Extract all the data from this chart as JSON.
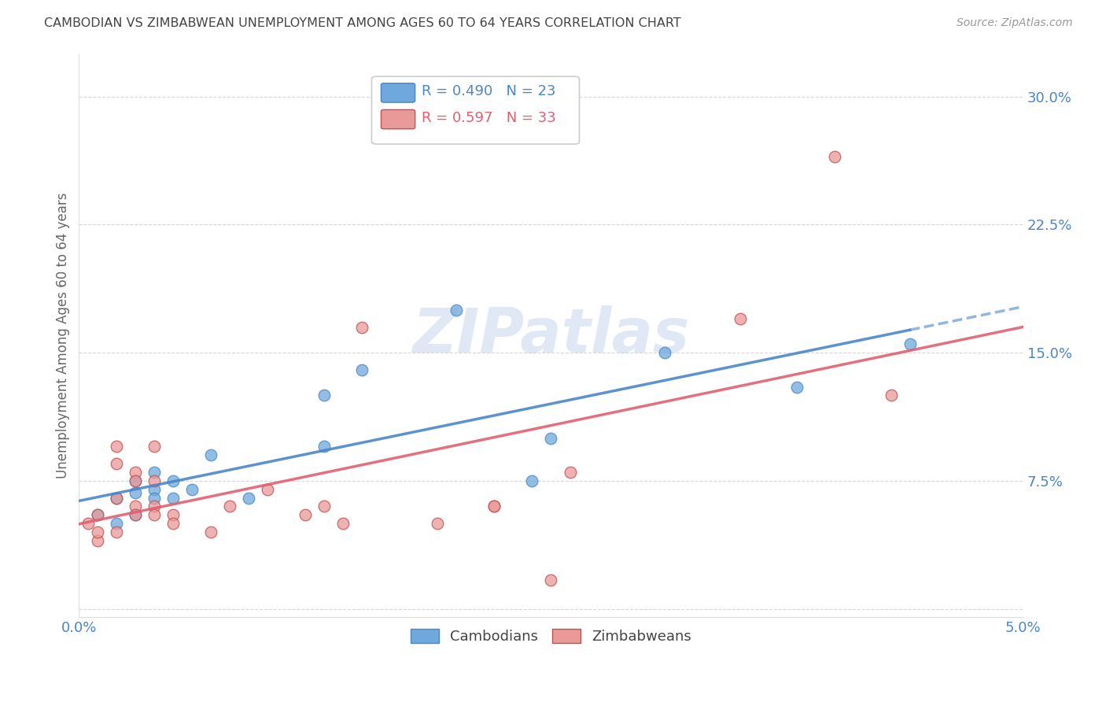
{
  "title": "CAMBODIAN VS ZIMBABWEAN UNEMPLOYMENT AMONG AGES 60 TO 64 YEARS CORRELATION CHART",
  "source": "Source: ZipAtlas.com",
  "ylabel": "Unemployment Among Ages 60 to 64 years",
  "xlabel_cambodians": "Cambodians",
  "xlabel_zimbabweans": "Zimbabweans",
  "xlim": [
    0.0,
    0.05
  ],
  "ylim": [
    -0.005,
    0.325
  ],
  "yticks": [
    0.0,
    0.075,
    0.15,
    0.225,
    0.3
  ],
  "ytick_labels": [
    "",
    "7.5%",
    "15.0%",
    "22.5%",
    "30.0%"
  ],
  "xticks": [
    0.0,
    0.0125,
    0.025,
    0.0375,
    0.05
  ],
  "xtick_labels": [
    "0.0%",
    "",
    "",
    "",
    "5.0%"
  ],
  "cambodian_color": "#6fa8dc",
  "cambodian_edge_color": "#4a86c8",
  "zimbabwean_color": "#ea9999",
  "zimbabwean_edge_color": "#c0504d",
  "trend_cambodian_color": "#4a86c8",
  "trend_zimbabwean_color": "#e06070",
  "legend_R_cambodian": "0.490",
  "legend_N_cambodian": "23",
  "legend_R_zimbabwean": "0.597",
  "legend_N_zimbabwean": "33",
  "background_color": "#ffffff",
  "grid_color": "#cccccc",
  "title_color": "#444444",
  "ylabel_color": "#666666",
  "tick_label_color": "#4a86c8",
  "cambodian_x": [
    0.001,
    0.002,
    0.002,
    0.003,
    0.003,
    0.003,
    0.004,
    0.004,
    0.004,
    0.005,
    0.005,
    0.006,
    0.007,
    0.009,
    0.013,
    0.013,
    0.015,
    0.02,
    0.024,
    0.025,
    0.031,
    0.038,
    0.044
  ],
  "cambodian_y": [
    0.055,
    0.05,
    0.065,
    0.055,
    0.068,
    0.075,
    0.07,
    0.065,
    0.08,
    0.065,
    0.075,
    0.07,
    0.09,
    0.065,
    0.125,
    0.095,
    0.14,
    0.175,
    0.075,
    0.1,
    0.15,
    0.13,
    0.155
  ],
  "zimbabwean_x": [
    0.0005,
    0.001,
    0.001,
    0.001,
    0.002,
    0.002,
    0.002,
    0.002,
    0.003,
    0.003,
    0.003,
    0.003,
    0.004,
    0.004,
    0.004,
    0.004,
    0.005,
    0.005,
    0.007,
    0.008,
    0.01,
    0.012,
    0.013,
    0.014,
    0.015,
    0.019,
    0.022,
    0.022,
    0.025,
    0.026,
    0.035,
    0.04,
    0.043
  ],
  "zimbabwean_y": [
    0.05,
    0.04,
    0.045,
    0.055,
    0.095,
    0.085,
    0.065,
    0.045,
    0.08,
    0.075,
    0.06,
    0.055,
    0.095,
    0.075,
    0.06,
    0.055,
    0.055,
    0.05,
    0.045,
    0.06,
    0.07,
    0.055,
    0.06,
    0.05,
    0.165,
    0.05,
    0.06,
    0.06,
    0.017,
    0.08,
    0.17,
    0.265,
    0.125
  ],
  "marker_size": 110,
  "watermark_text": "ZIPatlas",
  "figsize": [
    14.06,
    8.92
  ],
  "dpi": 100
}
